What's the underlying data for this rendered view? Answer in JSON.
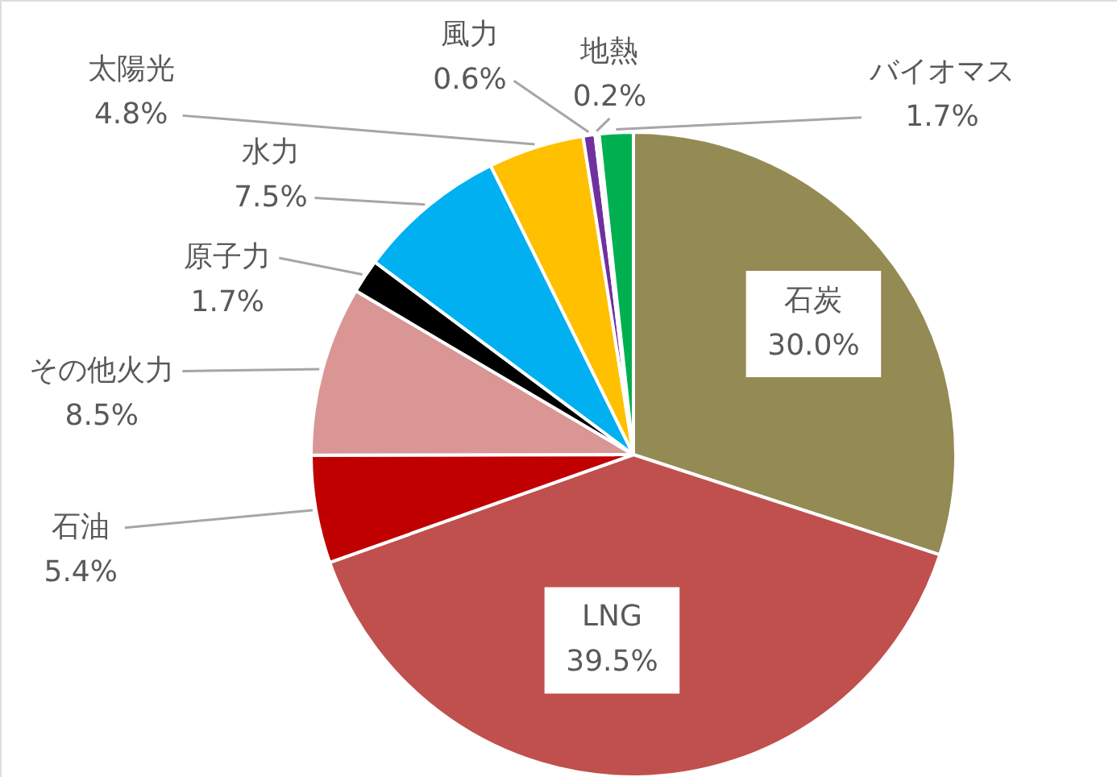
{
  "chart_data": {
    "type": "pie",
    "categories": [
      "石炭",
      "LNG",
      "石油",
      "その他火力",
      "原子力",
      "水力",
      "太陽光",
      "風力",
      "地熱",
      "バイオマス"
    ],
    "values": [
      30.0,
      39.5,
      5.4,
      8.5,
      1.7,
      7.5,
      4.8,
      0.6,
      0.2,
      1.7
    ],
    "value_labels": [
      "30.0%",
      "39.5%",
      "5.4%",
      "8.5%",
      "1.7%",
      "7.5%",
      "4.8%",
      "0.6%",
      "0.2%",
      "1.7%"
    ],
    "colors": [
      "#948a54",
      "#c0504d",
      "#c00000",
      "#d99694",
      "#000000",
      "#00b0f0",
      "#ffc000",
      "#7030a0",
      "#f2f2f2",
      "#00b050"
    ]
  }
}
